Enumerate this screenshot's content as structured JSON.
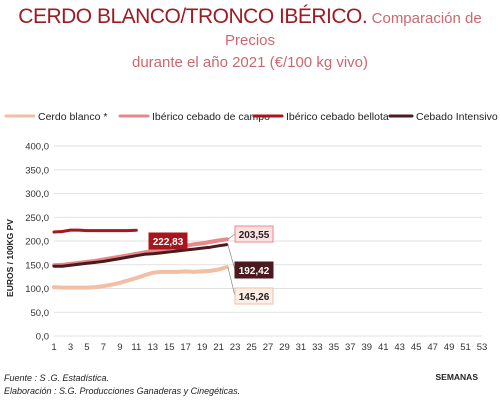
{
  "title": {
    "main": "CERDO BLANCO/TRONCO IBÉRICO.",
    "sub_line1": "Comparación de Precios",
    "sub_line2": "durante el año 2021 (€/100 kg vivo)"
  },
  "footer": {
    "fuente": "Fuente :  S .G. Estadística.",
    "elaboracion": "Elaboración : S.G. Producciones Ganaderas y Cinegéticas."
  },
  "chart_data": {
    "type": "line",
    "ylabel": "EUROS / 100KG PV",
    "xlabel": "SEMANAS",
    "ylim": [
      0,
      400
    ],
    "xlim": [
      1,
      53
    ],
    "yticks": [
      "0,0",
      "50,0",
      "100,0",
      "150,0",
      "200,0",
      "250,0",
      "300,0",
      "350,0",
      "400,0"
    ],
    "xticks": [
      "1",
      "3",
      "5",
      "7",
      "9",
      "11",
      "13",
      "15",
      "17",
      "19",
      "21",
      "23",
      "25",
      "27",
      "29",
      "31",
      "33",
      "35",
      "37",
      "39",
      "41",
      "43",
      "45",
      "47",
      "49",
      "51",
      "53"
    ],
    "grid": true,
    "legend_position": "top",
    "series": [
      {
        "name": "Cerdo blanco *",
        "color": "#f0bfa6",
        "x": [
          1,
          2,
          3,
          4,
          5,
          6,
          7,
          8,
          9,
          10,
          11,
          12,
          13,
          14,
          15,
          16,
          17,
          18,
          19,
          20,
          21,
          22
        ],
        "values": [
          103,
          102,
          102,
          102,
          102,
          103,
          105,
          108,
          112,
          117,
          122,
          128,
          133,
          135,
          135,
          135,
          136,
          135,
          136,
          137,
          140,
          145.26
        ],
        "end_label": "145,26"
      },
      {
        "name": "Ibérico cebado de campo",
        "color": "#e8888a",
        "x": [
          1,
          2,
          3,
          4,
          5,
          6,
          7,
          8,
          9,
          10,
          11,
          12,
          13,
          14,
          15,
          16,
          17,
          18,
          19,
          20,
          21,
          22
        ],
        "values": [
          149,
          150,
          152,
          154,
          156,
          158,
          161,
          164,
          167,
          170,
          173,
          176,
          179,
          182,
          185,
          188,
          190,
          193,
          195,
          198,
          201,
          203.55
        ],
        "end_label": "203,55"
      },
      {
        "name": "Ibérico cebado bellota",
        "color": "#a8151c",
        "x": [
          1,
          2,
          3,
          4,
          5,
          6,
          7,
          8,
          9,
          10,
          11
        ],
        "values": [
          219,
          220,
          223,
          223,
          222,
          222,
          222,
          222,
          222,
          222,
          222.83
        ],
        "end_label": "222,83"
      },
      {
        "name": "Cebado Intensivo",
        "color": "#4a1a1e",
        "x": [
          1,
          2,
          3,
          4,
          5,
          6,
          7,
          8,
          9,
          10,
          11,
          12,
          13,
          14,
          15,
          16,
          17,
          18,
          19,
          20,
          21,
          22
        ],
        "values": [
          147,
          147,
          149,
          151,
          153,
          155,
          157,
          160,
          163,
          166,
          169,
          172,
          173,
          175,
          177,
          179,
          181,
          183,
          185,
          187,
          190,
          192.42
        ],
        "end_label": "192,42"
      }
    ]
  }
}
